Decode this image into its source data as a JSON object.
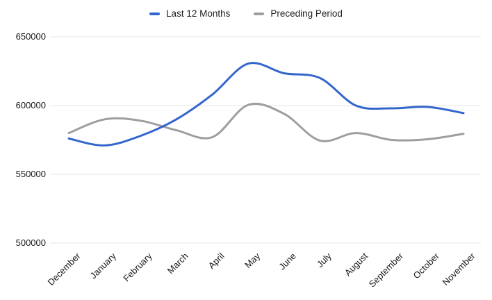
{
  "legend": {
    "items": [
      {
        "label": "Last 12 Months",
        "color": "#3366cc"
      },
      {
        "label": "Preceding Period",
        "color": "#9e9e9e"
      }
    ]
  },
  "chart_data": {
    "type": "line",
    "smooth": true,
    "grid": true,
    "legend_position": "top",
    "categories": [
      "December",
      "January",
      "February",
      "March",
      "April",
      "May",
      "June",
      "July",
      "August",
      "September",
      "October",
      "November"
    ],
    "series": [
      {
        "name": "Last 12 Months",
        "color": "#3366cc",
        "values": [
          576000,
          571000,
          578000,
          590000,
          608000,
          630500,
          623500,
          620000,
          600000,
          598000,
          599000,
          594500
        ]
      },
      {
        "name": "Preceding Period",
        "color": "#9e9e9e",
        "values": [
          580000,
          590000,
          589000,
          582000,
          577000,
          600500,
          594000,
          574500,
          580000,
          575000,
          575500,
          579500
        ]
      }
    ],
    "ylim": [
      500000,
      650000
    ],
    "yticks": [
      650000,
      600000,
      550000,
      500000
    ],
    "ytick_labels": [
      "650000",
      "600000",
      "550000",
      "500000"
    ],
    "xlabel": "",
    "ylabel": "",
    "title": ""
  },
  "colors": {
    "grid": "#e4e4e4",
    "axis_text": "#171717",
    "background": "#ffffff"
  }
}
